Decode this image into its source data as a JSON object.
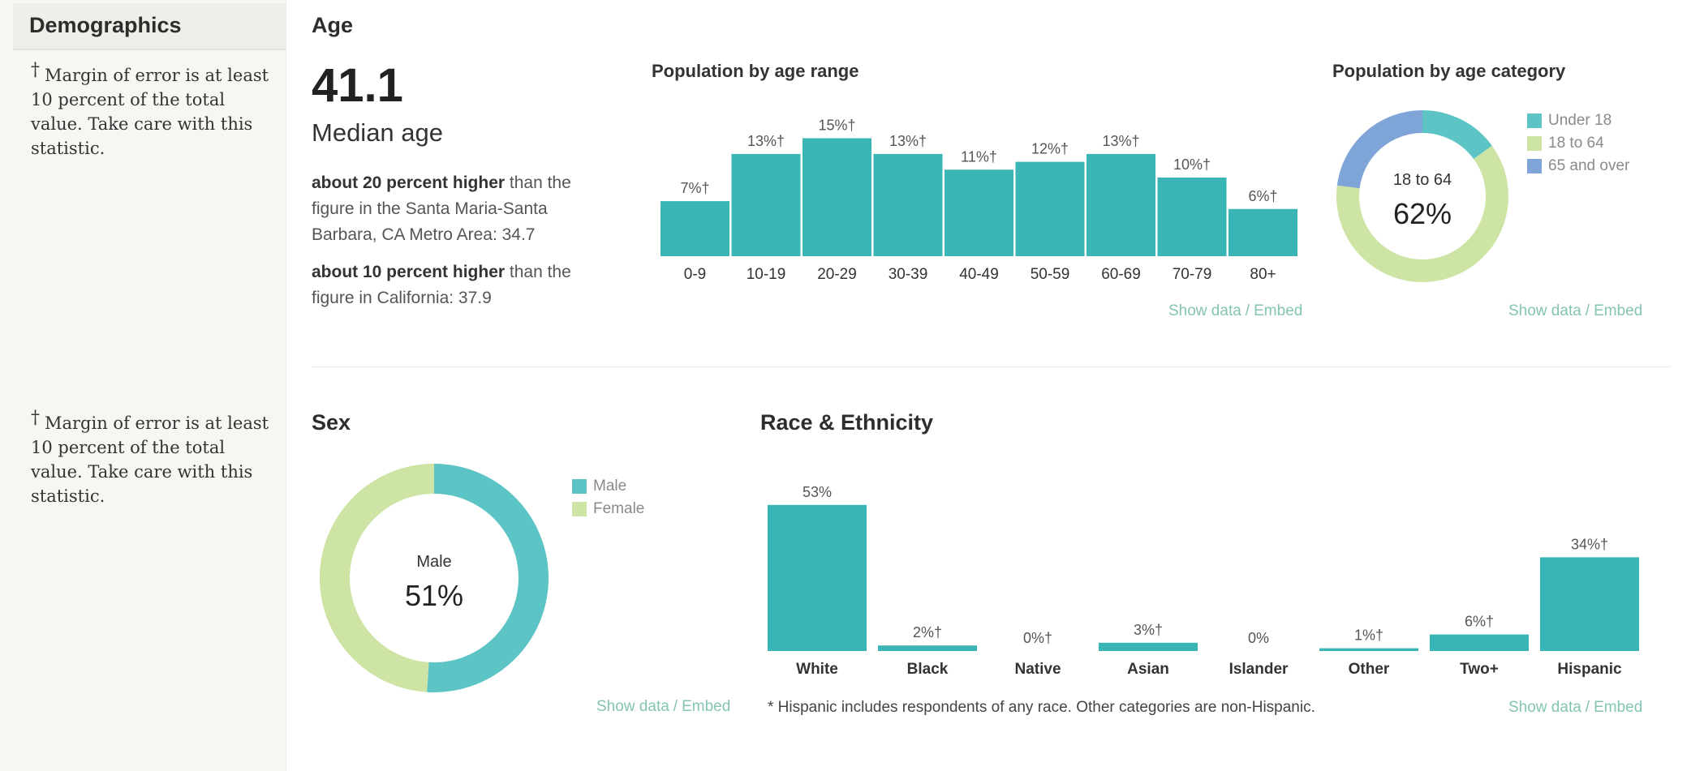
{
  "sidebar": {
    "title": "Demographics",
    "notes": [
      {
        "dagger": "†",
        "text": "Margin of error is at least 10 percent of the total value. Take care with this statistic."
      },
      {
        "dagger": "†",
        "text": "Margin of error is at least 10 percent of the total value. Take care with this statistic."
      }
    ]
  },
  "age": {
    "section_title": "Age",
    "median_value": "41.1",
    "median_label": "Median age",
    "comparisons": [
      {
        "bold": "about 20 percent higher",
        "rest": " than the figure in the Santa Maria-Santa Barbara, CA Metro Area: 34.7"
      },
      {
        "bold": "about 10 percent higher",
        "rest": " than the figure in California: 37.9"
      }
    ]
  },
  "links": {
    "show_data": "Show data",
    "separator": "/",
    "embed": "Embed"
  },
  "sex": {
    "section_title": "Sex"
  },
  "race": {
    "section_title": "Race & Ethnicity",
    "footnote": "* Hispanic includes respondents of any race. Other categories are non-Hispanic."
  },
  "colors": {
    "teal": "#3ab5b5",
    "light_teal": "#5cc4c4",
    "green": "#cde4a4",
    "blue": "#7fa4d8",
    "link": "#84c4b4"
  },
  "chart_data": [
    {
      "type": "bar",
      "title": "Population by age range",
      "categories": [
        "0-9",
        "10-19",
        "20-29",
        "30-39",
        "40-49",
        "50-59",
        "60-69",
        "70-79",
        "80+"
      ],
      "values": [
        7,
        13,
        15,
        13,
        11,
        12,
        13,
        10,
        6
      ],
      "labels": [
        "7%†",
        "13%†",
        "15%†",
        "13%†",
        "11%†",
        "12%†",
        "13%†",
        "10%†",
        "6%†"
      ],
      "color": "#3ab5b5"
    },
    {
      "type": "pie",
      "title": "Population by age category",
      "categories": [
        "Under 18",
        "18 to 64",
        "65 and over"
      ],
      "values": [
        15,
        62,
        23
      ],
      "colors": [
        "#5cc4c4",
        "#cde4a4",
        "#7fa4d8"
      ],
      "center_label": "18 to 64",
      "center_value": "62%",
      "legend": "right"
    },
    {
      "type": "pie",
      "title": "",
      "categories": [
        "Male",
        "Female"
      ],
      "values": [
        51,
        49
      ],
      "colors": [
        "#5cc4c4",
        "#cde4a4"
      ],
      "center_label": "Male",
      "center_value": "51%",
      "legend": "right"
    },
    {
      "type": "bar",
      "title": "",
      "categories": [
        "White",
        "Black",
        "Native",
        "Asian",
        "Islander",
        "Other",
        "Two+",
        "Hispanic"
      ],
      "values": [
        53,
        2,
        0,
        3,
        0,
        1,
        6,
        34
      ],
      "labels": [
        "53%",
        "2%†",
        "0%†",
        "3%†",
        "0%",
        "1%†",
        "6%†",
        "34%†"
      ],
      "color": "#3ab5b5"
    }
  ]
}
